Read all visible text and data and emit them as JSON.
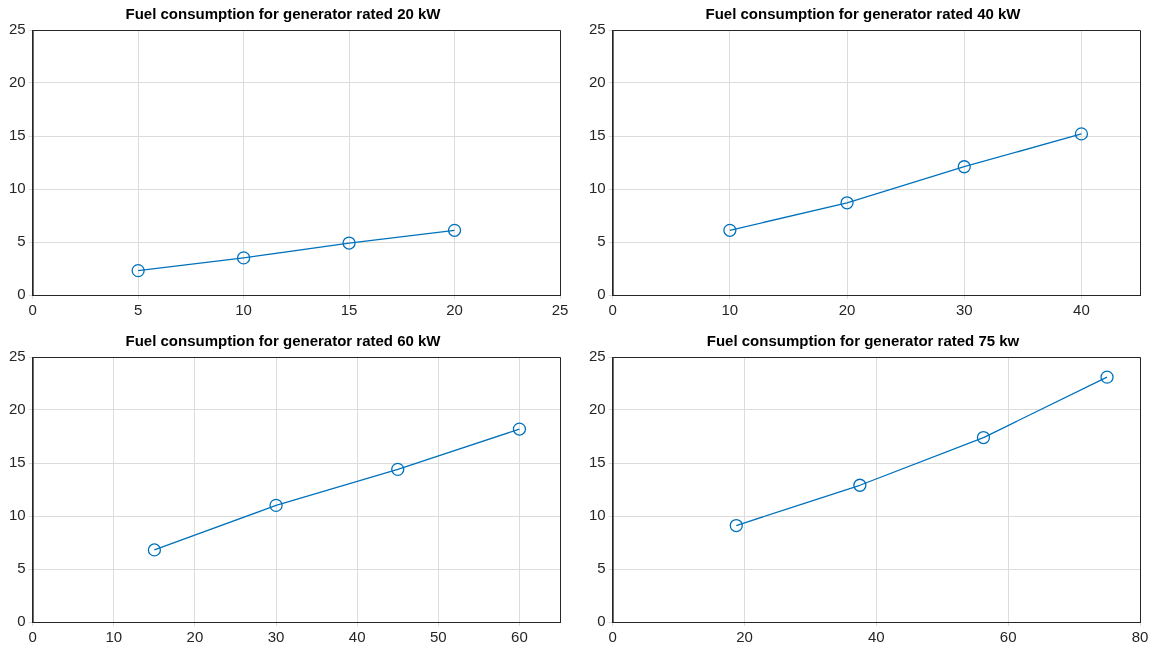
{
  "chart_data": [
    {
      "type": "line",
      "title": "Fuel consumption for generator rated 20 kW",
      "x": [
        5,
        10,
        15,
        20
      ],
      "values": [
        2.3,
        3.5,
        4.9,
        6.1
      ],
      "color": "#0072bd",
      "xlim": [
        0,
        25
      ],
      "xticks": [
        0,
        5,
        10,
        15,
        20,
        25
      ],
      "ylim": [
        0,
        25
      ],
      "yticks": [
        0,
        5,
        10,
        15,
        20,
        25
      ],
      "grid": true,
      "marker": "circle"
    },
    {
      "type": "line",
      "title": "Fuel consumption for generator rated 40 kW",
      "x": [
        10,
        20,
        30,
        40
      ],
      "values": [
        6.1,
        8.7,
        12.1,
        15.2
      ],
      "color": "#0072bd",
      "xlim": [
        0,
        45
      ],
      "xticks": [
        0,
        10,
        20,
        30,
        40
      ],
      "ylim": [
        0,
        25
      ],
      "yticks": [
        0,
        5,
        10,
        15,
        20,
        25
      ],
      "grid": true,
      "marker": "circle"
    },
    {
      "type": "line",
      "title": "Fuel consumption for generator rated 60 kW",
      "x": [
        15,
        30,
        45,
        60
      ],
      "values": [
        6.8,
        11,
        14.4,
        18.2
      ],
      "color": "#0072bd",
      "xlim": [
        0,
        65
      ],
      "xticks": [
        0,
        10,
        20,
        30,
        40,
        50,
        60
      ],
      "ylim": [
        0,
        25
      ],
      "yticks": [
        0,
        5,
        10,
        15,
        20,
        25
      ],
      "grid": true,
      "marker": "circle"
    },
    {
      "type": "line",
      "title": "Fuel consumption for generator rated 75 kw",
      "x": [
        18.75,
        37.5,
        56.25,
        75
      ],
      "values": [
        9.1,
        12.9,
        17.4,
        23.1
      ],
      "color": "#0072bd",
      "xlim": [
        0,
        80
      ],
      "xticks": [
        0,
        20,
        40,
        60,
        80
      ],
      "ylim": [
        0,
        25
      ],
      "yticks": [
        0,
        5,
        10,
        15,
        20,
        25
      ],
      "grid": true,
      "marker": "circle"
    }
  ]
}
